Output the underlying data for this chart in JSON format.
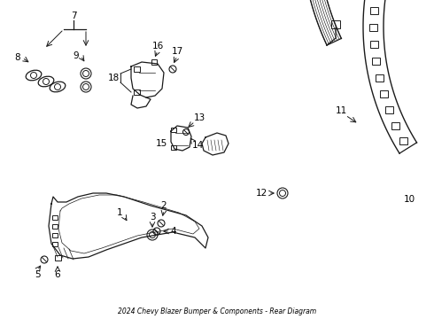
{
  "title": "2024 Chevy Blazer Bumper & Components - Rear Diagram",
  "bg_color": "#ffffff",
  "line_color": "#1a1a1a",
  "text_color": "#000000",
  "fig_width": 4.9,
  "fig_height": 3.6,
  "dpi": 100
}
